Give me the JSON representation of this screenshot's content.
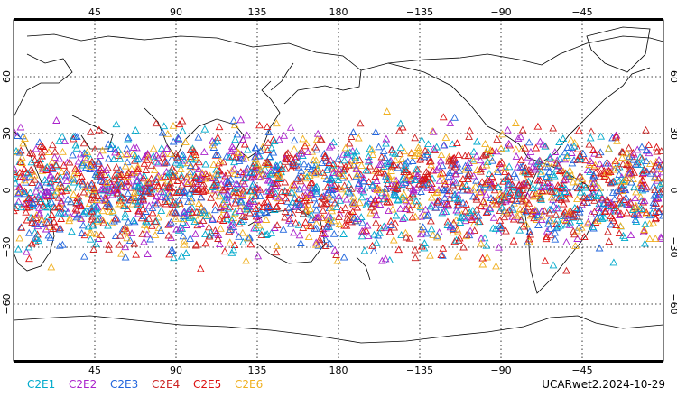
{
  "map": {
    "projection": "cylindrical equidistant",
    "center_longitude": 180,
    "lat_range": [
      -90,
      90
    ],
    "grid": "dotted",
    "lon_tick_labels": [
      "45",
      "90",
      "135",
      "180",
      "−135",
      "−90",
      "−45"
    ],
    "lat_tick_labels": [
      "60",
      "30",
      "0",
      "−30",
      "−60"
    ],
    "marker": "open triangle",
    "observation_band_lat": [
      -45,
      45
    ]
  },
  "legend": {
    "items": [
      {
        "label": "C2E1",
        "color": "#00aacc"
      },
      {
        "label": "C2E2",
        "color": "#aa22cc"
      },
      {
        "label": "C2E3",
        "color": "#2266dd"
      },
      {
        "label": "C2E4",
        "color": "#cc2222"
      },
      {
        "label": "C2E5",
        "color": "#dd1111"
      },
      {
        "label": "C2E6",
        "color": "#f0b020"
      }
    ]
  },
  "footer": {
    "dataset_label": "UCARwet2.2024-10-29"
  }
}
